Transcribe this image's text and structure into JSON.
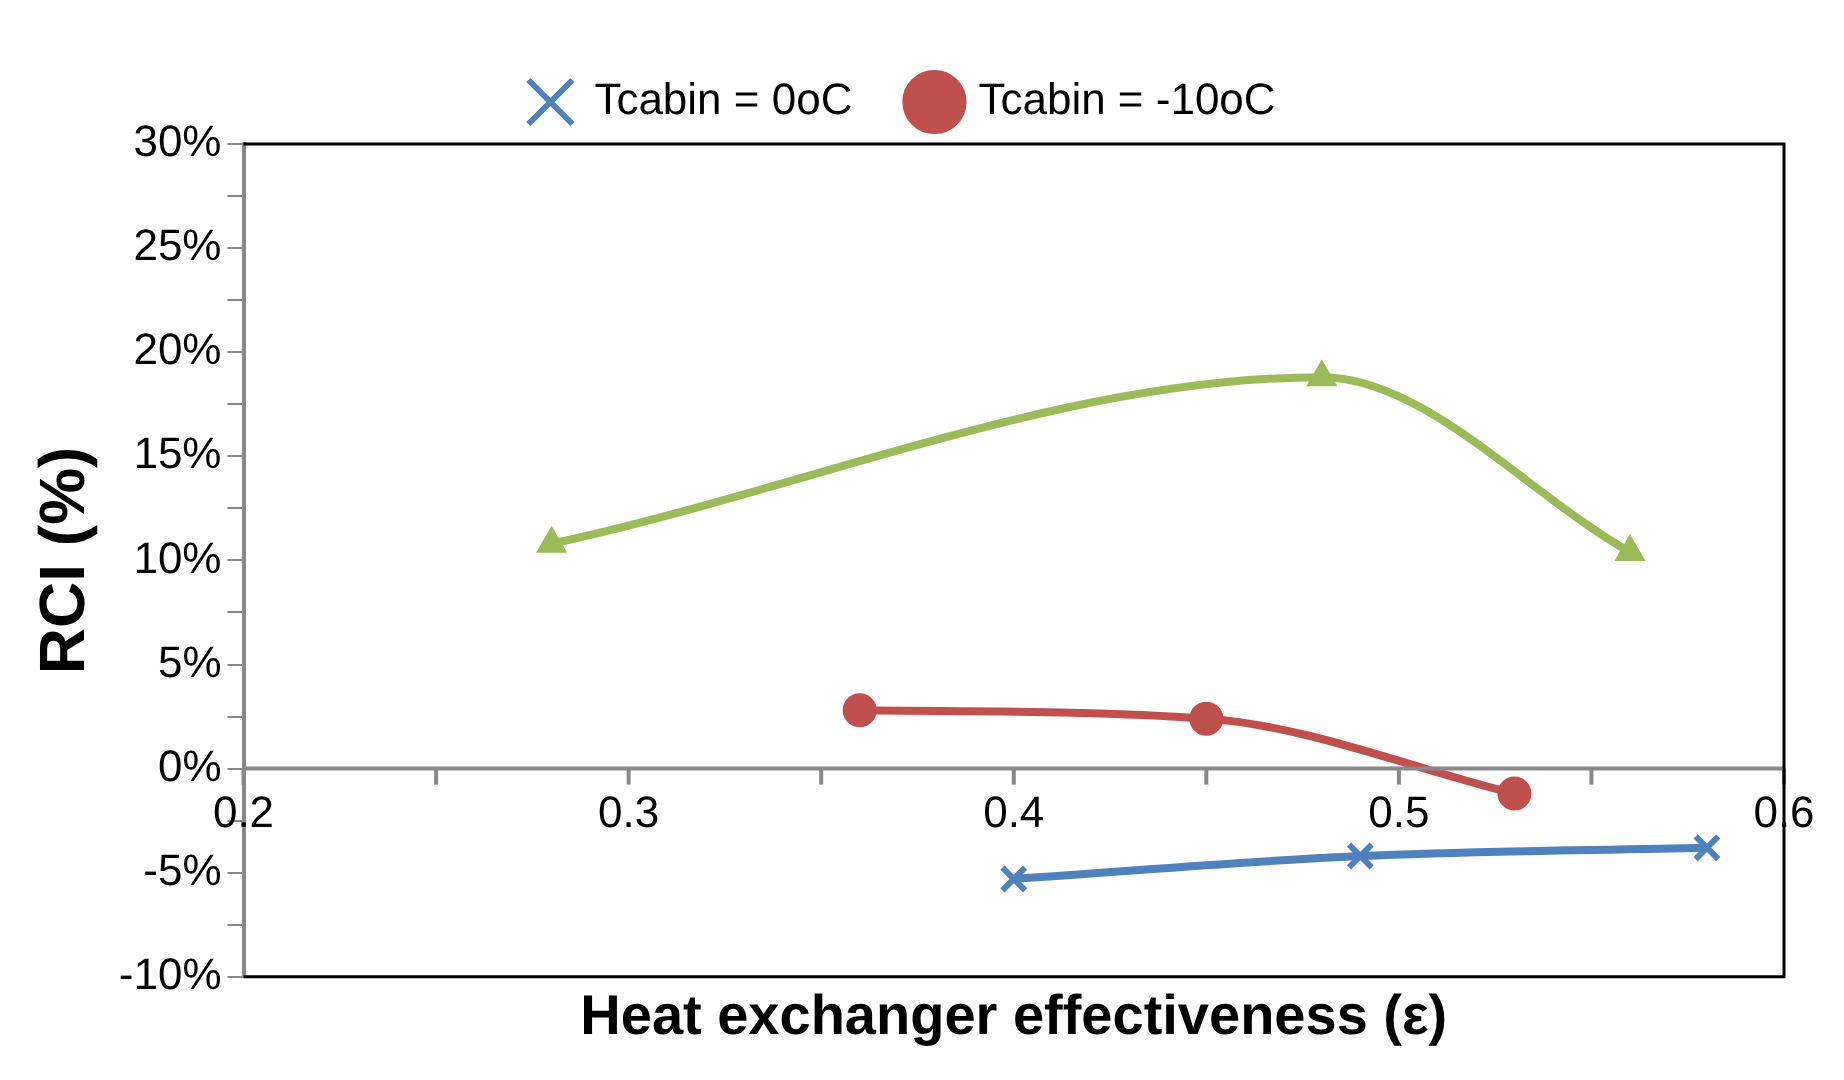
{
  "chart_data": {
    "type": "line",
    "xlabel": "Heat exchanger effectiveness (ε)",
    "ylabel": "RCI (%)",
    "xlim": [
      0.2,
      0.6
    ],
    "xticks": [
      0.2,
      {
        "value": 0.25,
        "label": null
      },
      0.3,
      {
        "value": 0.35,
        "label": null
      },
      0.4,
      {
        "value": 0.45,
        "label": null
      },
      0.5,
      {
        "value": 0.55,
        "label": null
      },
      0.6
    ],
    "ylim": [
      -10,
      30
    ],
    "yticks": [
      {
        "value": -10,
        "label": "-10%"
      },
      {
        "value": -7.5,
        "label": null
      },
      {
        "value": -5,
        "label": "-5%"
      },
      {
        "value": -2.5,
        "label": null
      },
      {
        "value": 0,
        "label": "0%"
      },
      {
        "value": 2.5,
        "label": null
      },
      {
        "value": 5,
        "label": "5%"
      },
      {
        "value": 7.5,
        "label": null
      },
      {
        "value": 10,
        "label": "10%"
      },
      {
        "value": 12.5,
        "label": null
      },
      {
        "value": 15,
        "label": "15%"
      },
      {
        "value": 17.5,
        "label": null
      },
      {
        "value": 20,
        "label": "20%"
      },
      {
        "value": 22.5,
        "label": null
      },
      {
        "value": 25,
        "label": "25%"
      },
      {
        "value": 27.5,
        "label": null
      },
      {
        "value": 30,
        "label": "30%"
      }
    ],
    "grid": false,
    "legend": "top",
    "series": [
      {
        "name": "Tcabin = 0oC",
        "color": "#4f81bd",
        "marker": "cross",
        "x": [
          0.4,
          0.49,
          0.58
        ],
        "values": [
          -5.3,
          -4.2,
          -3.8
        ]
      },
      {
        "name": "Tcabin = -10oC",
        "color": "#c0504d",
        "marker": "circle",
        "x": [
          0.36,
          0.45,
          0.53
        ],
        "values": [
          2.8,
          2.4,
          -1.2
        ]
      },
      {
        "color": "#9bbb59",
        "marker": "triangle",
        "x": [
          0.28,
          0.48,
          0.56
        ],
        "values": [
          10.8,
          18.8,
          10.4
        ]
      }
    ]
  }
}
